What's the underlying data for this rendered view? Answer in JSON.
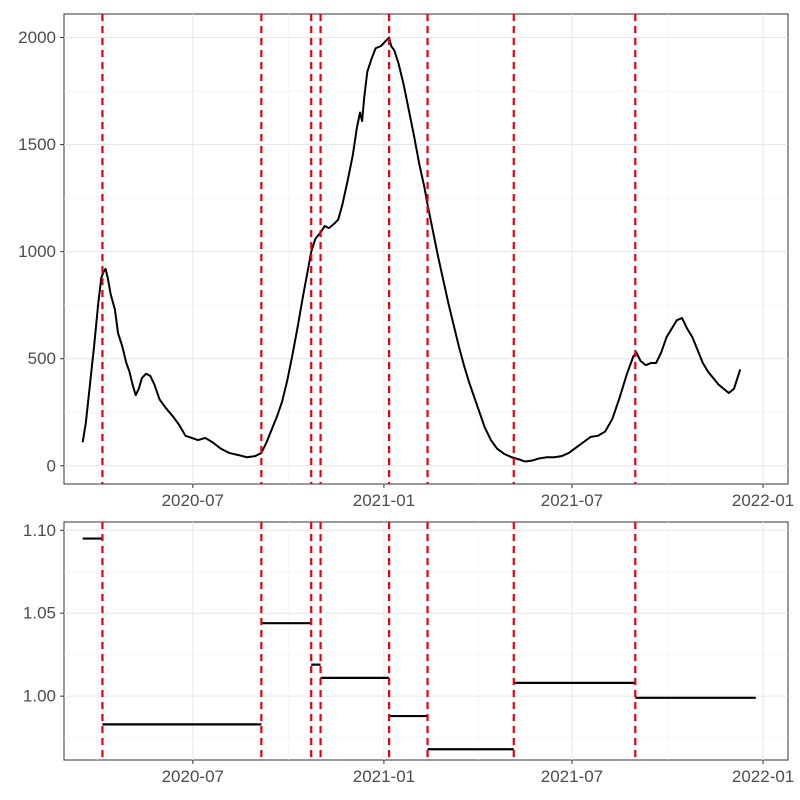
{
  "chart_data": [
    {
      "type": "line",
      "title": "",
      "xlabel": "",
      "ylabel": "",
      "x_ticks": [
        {
          "date": "2020-07-01",
          "label": "2020-07"
        },
        {
          "date": "2021-01-01",
          "label": "2021-01"
        },
        {
          "date": "2021-07-01",
          "label": "2021-07"
        },
        {
          "date": "2022-01-01",
          "label": "2022-01"
        }
      ],
      "y_ticks": [
        0,
        500,
        1000,
        1500,
        2000
      ],
      "xlim": [
        "2020-02-28",
        "2022-01-25"
      ],
      "ylim": [
        -85,
        2110
      ],
      "grid": true,
      "line_color": "#000000",
      "changepoint_color": "#e8000b",
      "changepoints": [
        "2020-04-05",
        "2020-09-05",
        "2020-10-23",
        "2020-11-01",
        "2021-01-06",
        "2021-02-12",
        "2021-05-06",
        "2021-08-31"
      ],
      "series": [
        {
          "name": "daily",
          "points": [
            [
              "2020-03-17",
              110
            ],
            [
              "2020-03-20",
              200
            ],
            [
              "2020-03-24",
              380
            ],
            [
              "2020-03-28",
              560
            ],
            [
              "2020-04-01",
              760
            ],
            [
              "2020-04-04",
              880
            ],
            [
              "2020-04-06",
              905
            ],
            [
              "2020-04-08",
              920
            ],
            [
              "2020-04-10",
              880
            ],
            [
              "2020-04-13",
              800
            ],
            [
              "2020-04-17",
              730
            ],
            [
              "2020-04-20",
              620
            ],
            [
              "2020-04-24",
              560
            ],
            [
              "2020-04-28",
              480
            ],
            [
              "2020-05-01",
              440
            ],
            [
              "2020-05-04",
              380
            ],
            [
              "2020-05-07",
              330
            ],
            [
              "2020-05-10",
              360
            ],
            [
              "2020-05-13",
              410
            ],
            [
              "2020-05-17",
              430
            ],
            [
              "2020-05-21",
              420
            ],
            [
              "2020-05-25",
              380
            ],
            [
              "2020-05-30",
              310
            ],
            [
              "2020-06-05",
              270
            ],
            [
              "2020-06-12",
              230
            ],
            [
              "2020-06-18",
              190
            ],
            [
              "2020-06-24",
              140
            ],
            [
              "2020-06-30",
              130
            ],
            [
              "2020-07-06",
              120
            ],
            [
              "2020-07-13",
              130
            ],
            [
              "2020-07-20",
              110
            ],
            [
              "2020-07-28",
              80
            ],
            [
              "2020-08-05",
              60
            ],
            [
              "2020-08-14",
              50
            ],
            [
              "2020-08-22",
              40
            ],
            [
              "2020-08-30",
              45
            ],
            [
              "2020-09-05",
              60
            ],
            [
              "2020-09-10",
              110
            ],
            [
              "2020-09-15",
              170
            ],
            [
              "2020-09-20",
              230
            ],
            [
              "2020-09-25",
              300
            ],
            [
              "2020-09-30",
              400
            ],
            [
              "2020-10-05",
              520
            ],
            [
              "2020-10-10",
              650
            ],
            [
              "2020-10-15",
              790
            ],
            [
              "2020-10-20",
              920
            ],
            [
              "2020-10-23",
              1000
            ],
            [
              "2020-10-27",
              1060
            ],
            [
              "2020-11-01",
              1090
            ],
            [
              "2020-11-05",
              1120
            ],
            [
              "2020-11-09",
              1110
            ],
            [
              "2020-11-14",
              1130
            ],
            [
              "2020-11-18",
              1150
            ],
            [
              "2020-11-22",
              1220
            ],
            [
              "2020-11-27",
              1330
            ],
            [
              "2020-12-02",
              1450
            ],
            [
              "2020-12-06",
              1580
            ],
            [
              "2020-12-09",
              1650
            ],
            [
              "2020-12-11",
              1610
            ],
            [
              "2020-12-13",
              1720
            ],
            [
              "2020-12-16",
              1840
            ],
            [
              "2020-12-20",
              1900
            ],
            [
              "2020-12-24",
              1950
            ],
            [
              "2020-12-29",
              1960
            ],
            [
              "2021-01-02",
              1980
            ],
            [
              "2021-01-06",
              2000
            ],
            [
              "2021-01-08",
              1960
            ],
            [
              "2021-01-11",
              1940
            ],
            [
              "2021-01-15",
              1880
            ],
            [
              "2021-01-20",
              1780
            ],
            [
              "2021-01-25",
              1660
            ],
            [
              "2021-01-30",
              1540
            ],
            [
              "2021-02-04",
              1410
            ],
            [
              "2021-02-09",
              1300
            ],
            [
              "2021-02-12",
              1220
            ],
            [
              "2021-02-17",
              1100
            ],
            [
              "2021-02-22",
              980
            ],
            [
              "2021-02-27",
              870
            ],
            [
              "2021-03-04",
              760
            ],
            [
              "2021-03-09",
              660
            ],
            [
              "2021-03-14",
              560
            ],
            [
              "2021-03-19",
              470
            ],
            [
              "2021-03-24",
              390
            ],
            [
              "2021-03-29",
              320
            ],
            [
              "2021-04-03",
              250
            ],
            [
              "2021-04-08",
              180
            ],
            [
              "2021-04-14",
              120
            ],
            [
              "2021-04-20",
              80
            ],
            [
              "2021-04-27",
              55
            ],
            [
              "2021-05-04",
              40
            ],
            [
              "2021-05-11",
              30
            ],
            [
              "2021-05-17",
              20
            ],
            [
              "2021-05-24",
              25
            ],
            [
              "2021-05-31",
              35
            ],
            [
              "2021-06-07",
              40
            ],
            [
              "2021-06-14",
              40
            ],
            [
              "2021-06-21",
              45
            ],
            [
              "2021-06-28",
              60
            ],
            [
              "2021-07-05",
              85
            ],
            [
              "2021-07-12",
              110
            ],
            [
              "2021-07-19",
              135
            ],
            [
              "2021-07-26",
              140
            ],
            [
              "2021-08-02",
              160
            ],
            [
              "2021-08-09",
              220
            ],
            [
              "2021-08-16",
              320
            ],
            [
              "2021-08-23",
              430
            ],
            [
              "2021-08-29",
              510
            ],
            [
              "2021-09-01",
              530
            ],
            [
              "2021-09-05",
              490
            ],
            [
              "2021-09-10",
              470
            ],
            [
              "2021-09-15",
              480
            ],
            [
              "2021-09-20",
              480
            ],
            [
              "2021-09-25",
              530
            ],
            [
              "2021-09-30",
              600
            ],
            [
              "2021-10-05",
              640
            ],
            [
              "2021-10-10",
              680
            ],
            [
              "2021-10-15",
              690
            ],
            [
              "2021-10-20",
              640
            ],
            [
              "2021-10-25",
              600
            ],
            [
              "2021-10-30",
              540
            ],
            [
              "2021-11-04",
              480
            ],
            [
              "2021-11-09",
              440
            ],
            [
              "2021-11-14",
              410
            ],
            [
              "2021-11-19",
              380
            ],
            [
              "2021-11-24",
              360
            ],
            [
              "2021-11-29",
              340
            ],
            [
              "2021-12-04",
              360
            ],
            [
              "2021-12-08",
              420
            ],
            [
              "2021-12-10",
              450
            ]
          ]
        }
      ]
    },
    {
      "type": "step",
      "title": "",
      "xlabel": "",
      "ylabel": "",
      "x_ticks": [
        {
          "date": "2020-07-01",
          "label": "2020-07"
        },
        {
          "date": "2021-01-01",
          "label": "2021-01"
        },
        {
          "date": "2021-07-01",
          "label": "2021-07"
        },
        {
          "date": "2022-01-01",
          "label": "2022-01"
        }
      ],
      "y_ticks": [
        {
          "value": 1.0,
          "label": "1.00"
        },
        {
          "value": 1.05,
          "label": "1.05"
        },
        {
          "value": 1.1,
          "label": "1.10"
        }
      ],
      "xlim": [
        "2020-02-28",
        "2022-01-25"
      ],
      "ylim": [
        0.9615,
        1.105
      ],
      "grid": true,
      "changepoints": [
        "2020-04-05",
        "2020-09-05",
        "2020-10-23",
        "2020-11-01",
        "2021-01-06",
        "2021-02-12",
        "2021-05-06",
        "2021-08-31"
      ],
      "segments": [
        {
          "start": "2020-03-17",
          "end": "2020-04-05",
          "value": 1.095
        },
        {
          "start": "2020-04-05",
          "end": "2020-09-05",
          "value": 0.983
        },
        {
          "start": "2020-09-05",
          "end": "2020-10-23",
          "value": 1.044
        },
        {
          "start": "2020-10-23",
          "end": "2020-11-01",
          "value": 1.019
        },
        {
          "start": "2020-11-01",
          "end": "2021-01-06",
          "value": 1.011
        },
        {
          "start": "2021-01-06",
          "end": "2021-02-12",
          "value": 0.988
        },
        {
          "start": "2021-02-12",
          "end": "2021-05-06",
          "value": 0.968
        },
        {
          "start": "2021-05-06",
          "end": "2021-08-31",
          "value": 1.008
        },
        {
          "start": "2021-08-31",
          "end": "2021-12-25",
          "value": 0.999
        }
      ]
    }
  ]
}
